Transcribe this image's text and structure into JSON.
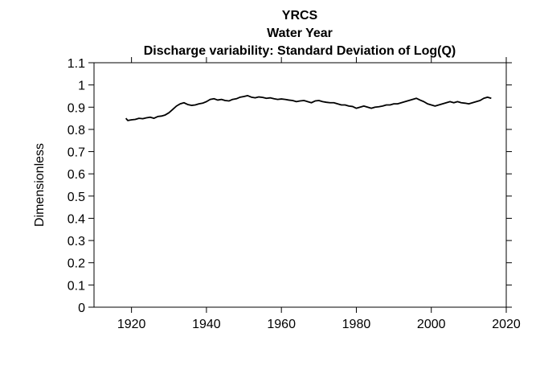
{
  "chart_data": {
    "type": "line",
    "title": [
      "YRCS",
      "Water Year",
      "Discharge variability: Standard Deviation of Log(Q)"
    ],
    "xlabel": "",
    "ylabel": "Dimensionless",
    "xlim": [
      1910,
      2020
    ],
    "ylim": [
      0,
      1.1
    ],
    "xticks": [
      1920,
      1940,
      1960,
      1980,
      2000,
      2020
    ],
    "yticks": [
      0,
      0.1,
      0.2,
      0.3,
      0.4,
      0.5,
      0.6,
      0.7,
      0.8,
      0.9,
      1,
      1.1
    ],
    "ytick_labels": [
      "0",
      "0.1",
      "0.2",
      "0.3",
      "0.4",
      "0.5",
      "0.6",
      "0.7",
      "0.8",
      "0.9",
      "1",
      "1.1"
    ],
    "grid": false,
    "line_color": "#000000",
    "series": [
      {
        "x": [
          1918.5,
          1919,
          1920,
          1921,
          1922,
          1923,
          1924,
          1925,
          1926,
          1927,
          1928,
          1929,
          1930,
          1931,
          1932,
          1933,
          1934,
          1935,
          1936,
          1937,
          1938,
          1939,
          1940,
          1941,
          1942,
          1943,
          1944,
          1945,
          1946,
          1947,
          1948,
          1949,
          1950,
          1951,
          1952,
          1953,
          1954,
          1955,
          1956,
          1957,
          1958,
          1959,
          1960,
          1961,
          1962,
          1963,
          1964,
          1965,
          1966,
          1967,
          1968,
          1969,
          1970,
          1971,
          1972,
          1973,
          1974,
          1975,
          1976,
          1977,
          1978,
          1979,
          1980,
          1981,
          1982,
          1983,
          1984,
          1985,
          1986,
          1987,
          1988,
          1989,
          1990,
          1991,
          1992,
          1993,
          1994,
          1995,
          1996,
          1997,
          1998,
          1999,
          2000,
          2001,
          2002,
          2003,
          2004,
          2005,
          2006,
          2007,
          2008,
          2009,
          2010,
          2011,
          2012,
          2013,
          2014,
          2015,
          2016
        ],
        "values": [
          0.85,
          0.84,
          0.843,
          0.845,
          0.85,
          0.848,
          0.852,
          0.855,
          0.85,
          0.858,
          0.86,
          0.865,
          0.875,
          0.89,
          0.905,
          0.915,
          0.92,
          0.912,
          0.908,
          0.91,
          0.915,
          0.918,
          0.925,
          0.935,
          0.938,
          0.932,
          0.935,
          0.93,
          0.928,
          0.935,
          0.938,
          0.945,
          0.948,
          0.952,
          0.945,
          0.942,
          0.946,
          0.944,
          0.94,
          0.942,
          0.938,
          0.935,
          0.937,
          0.935,
          0.932,
          0.93,
          0.925,
          0.928,
          0.93,
          0.925,
          0.92,
          0.928,
          0.93,
          0.925,
          0.922,
          0.92,
          0.92,
          0.915,
          0.91,
          0.91,
          0.905,
          0.903,
          0.895,
          0.9,
          0.905,
          0.9,
          0.895,
          0.9,
          0.902,
          0.905,
          0.91,
          0.91,
          0.915,
          0.915,
          0.92,
          0.925,
          0.93,
          0.935,
          0.94,
          0.932,
          0.925,
          0.915,
          0.91,
          0.905,
          0.91,
          0.915,
          0.92,
          0.925,
          0.92,
          0.925,
          0.92,
          0.918,
          0.915,
          0.92,
          0.925,
          0.93,
          0.94,
          0.945,
          0.94
        ]
      }
    ]
  }
}
